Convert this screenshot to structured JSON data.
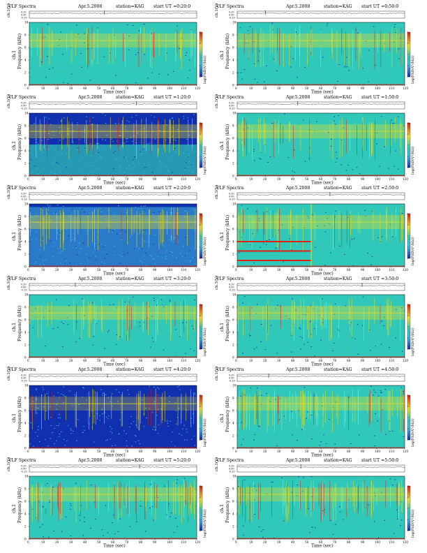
{
  "figure": {
    "ylabel_ch": "ch.1(V)",
    "ylabel_freq_line1": "ch.1",
    "ylabel_freq_line2": "Frequency (kHz)",
    "xlabel": "Time (sec)",
    "colorbar_label": "log(PSD(V²/Hz))"
  },
  "colors": {
    "low": "#1030b0",
    "mid": "#40b8e0",
    "bg": "#30c8b8",
    "high": "#f0e020",
    "peak": "#e02010",
    "time_axis": "#000000"
  },
  "chart_data": [
    {
      "type": "heatmap",
      "title": "VLF Spectra",
      "date": "Apr.5.2008",
      "station": "station=KAG",
      "start": "start UT =0:20:0",
      "xlabel": "Time (sec)",
      "ylabel": "Frequency (kHz)",
      "xlim": [
        0,
        120
      ],
      "ylim": [
        0,
        10
      ],
      "xticks": [
        0,
        10,
        20,
        30,
        40,
        50,
        60,
        70,
        80,
        90,
        100,
        110,
        120
      ],
      "yticks": [
        0,
        2,
        4,
        6,
        8,
        10
      ],
      "ch_ylim": [
        -0.2,
        0.2
      ],
      "ch_ticks": [
        "0.20",
        "0.00",
        "-0.20"
      ],
      "cbar_ticks": [
        "-5",
        "-6",
        "-7",
        "-8",
        "-9"
      ],
      "regime": "normal"
    },
    {
      "type": "heatmap",
      "title": "VLF Spectra",
      "date": "Apr.5.2008",
      "station": "station=KAG",
      "start": "start UT =0:50:0",
      "xlabel": "Time (sec)",
      "ylabel": "Frequency (kHz)",
      "xlim": [
        0,
        120
      ],
      "ylim": [
        0,
        10
      ],
      "xticks": [
        0,
        10,
        20,
        30,
        40,
        50,
        60,
        70,
        80,
        90,
        100,
        110,
        120
      ],
      "yticks": [
        0,
        2,
        4,
        6,
        8,
        10
      ],
      "ch_ylim": [
        -0.2,
        0.2
      ],
      "ch_ticks": [
        "0.20",
        "0.00",
        "-0.20"
      ],
      "cbar_ticks": [
        "-5",
        "-6",
        "-7",
        "-8",
        "-9"
      ],
      "regime": "normal"
    },
    {
      "type": "heatmap",
      "title": "VLF Spectra",
      "date": "Apr.5.2008",
      "station": "station=KAG",
      "start": "start UT =1:20:0",
      "xlabel": "Time (sec)",
      "ylabel": "Frequency (kHz)",
      "xlim": [
        0,
        120
      ],
      "ylim": [
        0,
        10
      ],
      "xticks": [
        0,
        10,
        20,
        30,
        40,
        50,
        60,
        70,
        80,
        90,
        100,
        110,
        120
      ],
      "yticks": [
        0,
        2,
        4,
        6,
        8,
        10
      ],
      "ch_ylim": [
        -0.2,
        0.2
      ],
      "ch_ticks": [
        "0.20",
        "0.00",
        "-0.20"
      ],
      "cbar_ticks": [
        "-5",
        "-6",
        "-7",
        "-8",
        "-9"
      ],
      "regime": "dark-top"
    },
    {
      "type": "heatmap",
      "title": "VLF Spectra",
      "date": "Apr.5.2008",
      "station": "station=KAG",
      "start": "start UT =1:50:0",
      "xlabel": "Time (sec)",
      "ylabel": "Frequency (kHz)",
      "xlim": [
        0,
        120
      ],
      "ylim": [
        0,
        10
      ],
      "xticks": [
        0,
        10,
        20,
        30,
        40,
        50,
        60,
        70,
        80,
        90,
        100,
        110,
        120
      ],
      "yticks": [
        0,
        2,
        4,
        6,
        8,
        10
      ],
      "ch_ylim": [
        -0.2,
        0.2
      ],
      "ch_ticks": [
        "0.20",
        "0.00",
        "-0.20"
      ],
      "cbar_ticks": [
        "-5",
        "-6",
        "-7",
        "-8",
        "-9"
      ],
      "regime": "normal"
    },
    {
      "type": "heatmap",
      "title": "VLF Spectra",
      "date": "Apr.5.2008",
      "station": "station=KAG",
      "start": "start UT =2:20:0",
      "xlabel": "Time (sec)",
      "ylabel": "Frequency (kHz)",
      "xlim": [
        0,
        120
      ],
      "ylim": [
        0,
        10
      ],
      "xticks": [
        0,
        10,
        20,
        30,
        40,
        50,
        60,
        70,
        80,
        90,
        100,
        110,
        120
      ],
      "yticks": [
        0,
        2,
        4,
        6,
        8,
        10
      ],
      "ch_ylim": [
        -0.2,
        0.2
      ],
      "ch_ticks": [
        "0.20",
        "0.00",
        "-0.20"
      ],
      "cbar_ticks": [
        "-5",
        "-6",
        "-7",
        "-8",
        "-9"
      ],
      "regime": "blue"
    },
    {
      "type": "heatmap",
      "title": "VLF Spectra",
      "date": "Apr.5.2008",
      "station": "station=KAG",
      "start": "start UT =2:50:0",
      "xlabel": "Time (sec)",
      "ylabel": "Frequency (kHz)",
      "xlim": [
        0,
        120
      ],
      "ylim": [
        0,
        10
      ],
      "xticks": [
        0,
        10,
        20,
        30,
        40,
        50,
        60,
        70,
        80,
        90,
        100,
        110,
        120
      ],
      "yticks": [
        0,
        2,
        4,
        6,
        8,
        10
      ],
      "ch_ylim": [
        -0.2,
        0.2
      ],
      "ch_ticks": [
        "0.20",
        "0.00",
        "-0.20"
      ],
      "cbar_ticks": [
        "-5",
        "-6",
        "-7",
        "-8",
        "-9"
      ],
      "regime": "bands"
    },
    {
      "type": "heatmap",
      "title": "VLF Spectra",
      "date": "Apr.5.2008",
      "station": "station=KAG",
      "start": "start UT =3:20:0",
      "xlabel": "Time (sec)",
      "ylabel": "Frequency (kHz)",
      "xlim": [
        0,
        120
      ],
      "ylim": [
        0,
        10
      ],
      "xticks": [
        0,
        10,
        20,
        30,
        40,
        50,
        60,
        70,
        80,
        90,
        100,
        110,
        120
      ],
      "yticks": [
        0,
        2,
        4,
        6,
        8,
        10
      ],
      "ch_ylim": [
        -0.2,
        0.2
      ],
      "ch_ticks": [
        "0.20",
        "0.00",
        "-0.20"
      ],
      "cbar_ticks": [
        "-5",
        "-6",
        "-7",
        "-8",
        "-9"
      ],
      "regime": "normal"
    },
    {
      "type": "heatmap",
      "title": "VLF Spectra",
      "date": "Apr.5.2008",
      "station": "station=KAG",
      "start": "start UT =3:50:0",
      "xlabel": "Time (sec)",
      "ylabel": "Frequency (kHz)",
      "xlim": [
        0,
        120
      ],
      "ylim": [
        0,
        10
      ],
      "xticks": [
        0,
        10,
        20,
        30,
        40,
        50,
        60,
        70,
        80,
        90,
        100,
        110,
        120
      ],
      "yticks": [
        0,
        2,
        4,
        6,
        8,
        10
      ],
      "ch_ylim": [
        -0.2,
        0.2
      ],
      "ch_ticks": [
        "0.20",
        "0.00",
        "-0.20"
      ],
      "cbar_ticks": [
        "-5",
        "-6",
        "-7",
        "-8",
        "-9"
      ],
      "regime": "normal"
    },
    {
      "type": "heatmap",
      "title": "VLF Spectra",
      "date": "Apr.5.2008",
      "station": "station=KAG",
      "start": "start UT =4:20:0",
      "xlabel": "Time (sec)",
      "ylabel": "Frequency (kHz)",
      "xlim": [
        0,
        120
      ],
      "ylim": [
        0,
        10
      ],
      "xticks": [
        0,
        10,
        20,
        30,
        40,
        50,
        60,
        70,
        80,
        90,
        100,
        110,
        120
      ],
      "yticks": [
        0,
        2,
        4,
        6,
        8,
        10
      ],
      "ch_ylim": [
        -0.2,
        0.2
      ],
      "ch_ticks": [
        "0.20",
        "0.00",
        "-0.20"
      ],
      "cbar_ticks": [
        "-5",
        "-6",
        "-7",
        "-8",
        "-9"
      ],
      "regime": "dark"
    },
    {
      "type": "heatmap",
      "title": "VLF Spectra",
      "date": "Apr.5.2008",
      "station": "station=KAG",
      "start": "start UT =4:50:0",
      "xlabel": "Time (sec)",
      "ylabel": "Frequency (kHz)",
      "xlim": [
        0,
        120
      ],
      "ylim": [
        0,
        10
      ],
      "xticks": [
        0,
        10,
        20,
        30,
        40,
        50,
        60,
        70,
        80,
        90,
        100,
        110,
        120
      ],
      "yticks": [
        0,
        2,
        4,
        6,
        8,
        10
      ],
      "ch_ylim": [
        -0.2,
        0.2
      ],
      "ch_ticks": [
        "0.20",
        "0.00",
        "-0.20"
      ],
      "cbar_ticks": [
        "-5",
        "-6",
        "-7",
        "-8",
        "-9"
      ],
      "regime": "busy"
    },
    {
      "type": "heatmap",
      "title": "VLF Spectra",
      "date": "Apr.5.2008",
      "station": "station=KAG",
      "start": "start UT =5:20:0",
      "xlabel": "Time (sec)",
      "ylabel": "Frequency (kHz)",
      "xlim": [
        0,
        120
      ],
      "ylim": [
        0,
        10
      ],
      "xticks": [
        0,
        10,
        20,
        30,
        40,
        50,
        60,
        70,
        80,
        90,
        100,
        110,
        120
      ],
      "yticks": [
        0,
        2,
        4,
        6,
        8,
        10
      ],
      "ch_ylim": [
        -0.2,
        0.2
      ],
      "ch_ticks": [
        "0.20",
        "0.00",
        "-0.20"
      ],
      "cbar_ticks": [
        "-5",
        "-6",
        "-7",
        "-8",
        "-9"
      ],
      "regime": "busy"
    },
    {
      "type": "heatmap",
      "title": "VLF Spectra",
      "date": "Apr.5.2008",
      "station": "station=KAG",
      "start": "start UT =5:50:0",
      "xlabel": "Time (sec)",
      "ylabel": "Frequency (kHz)",
      "xlim": [
        0,
        120
      ],
      "ylim": [
        0,
        10
      ],
      "xticks": [
        0,
        10,
        20,
        30,
        40,
        50,
        60,
        70,
        80,
        90,
        100,
        110,
        120
      ],
      "yticks": [
        0,
        2,
        4,
        6,
        8,
        10
      ],
      "ch_ylim": [
        -0.2,
        0.2
      ],
      "ch_ticks": [
        "0.20",
        "0.00",
        "-0.20"
      ],
      "cbar_ticks": [
        "-5",
        "-6",
        "-7",
        "-8",
        "-9"
      ],
      "regime": "busy"
    }
  ]
}
